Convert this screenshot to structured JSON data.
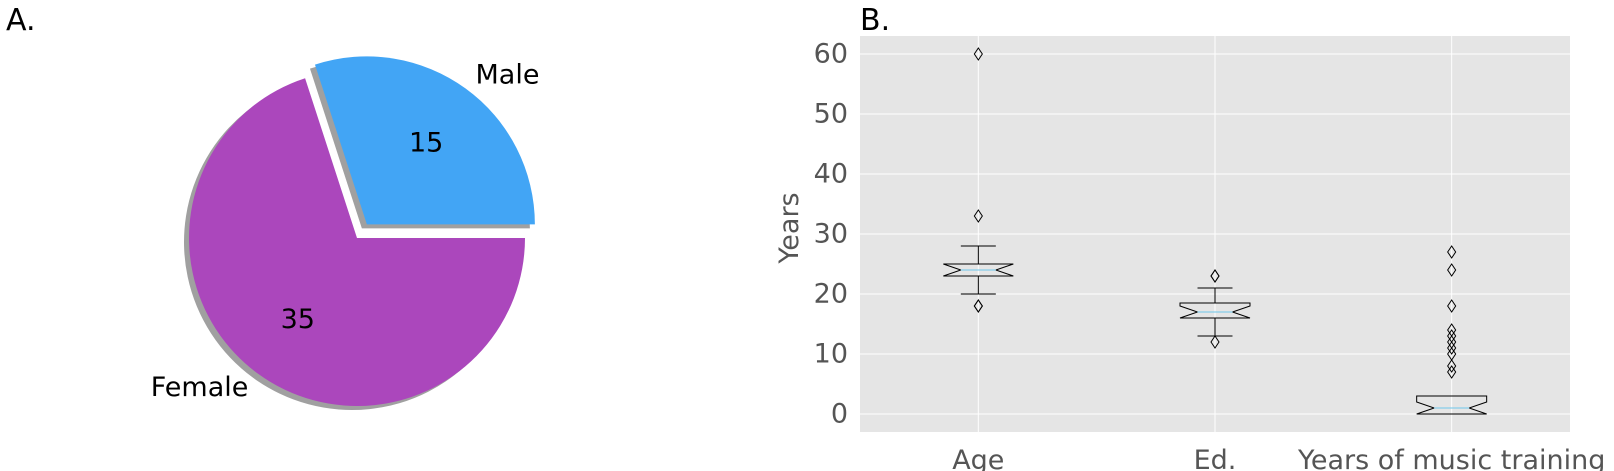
{
  "panels": {
    "a_label": "A.",
    "b_label": "B."
  },
  "colors": {
    "male": "#42a5f5",
    "female": "#ab47bc",
    "plot_bg": "#e5e5e5",
    "grid": "#ffffff",
    "box_edge": "#000000",
    "median": "#87ceeb",
    "tick_text": "#555555"
  },
  "chart_data": [
    {
      "type": "pie",
      "panel": "A.",
      "slices": [
        {
          "label": "Male",
          "value": 15,
          "display": "15",
          "color": "#42a5f5",
          "exploded": true
        },
        {
          "label": "Female",
          "value": 35,
          "display": "35",
          "color": "#ab47bc",
          "exploded": false
        }
      ],
      "shadow": true
    },
    {
      "type": "box",
      "panel": "B.",
      "ylabel": "Years",
      "ylim": [
        -3,
        63
      ],
      "yticks": [
        0,
        10,
        20,
        30,
        40,
        50,
        60
      ],
      "ytick_labels": [
        "0",
        "10",
        "20",
        "30",
        "40",
        "50",
        "60"
      ],
      "grid": true,
      "notched": true,
      "categories": [
        "Age",
        "Ed.",
        "Years of music training"
      ],
      "boxes": [
        {
          "category": "Age",
          "whislo": 20,
          "q1": 23,
          "med": 24,
          "q3": 25,
          "whishi": 28,
          "fliers": [
            18,
            18,
            33,
            60
          ]
        },
        {
          "category": "Ed.",
          "whislo": 13,
          "q1": 16,
          "med": 17,
          "q3": 18.5,
          "whishi": 21,
          "fliers": [
            12,
            23,
            23
          ]
        },
        {
          "category": "Years of music training",
          "whislo": 0,
          "q1": 0,
          "med": 1,
          "q3": 3,
          "whishi": 3,
          "fliers": [
            7,
            8,
            10,
            11,
            12,
            13,
            14,
            18,
            24,
            27
          ]
        }
      ]
    }
  ]
}
